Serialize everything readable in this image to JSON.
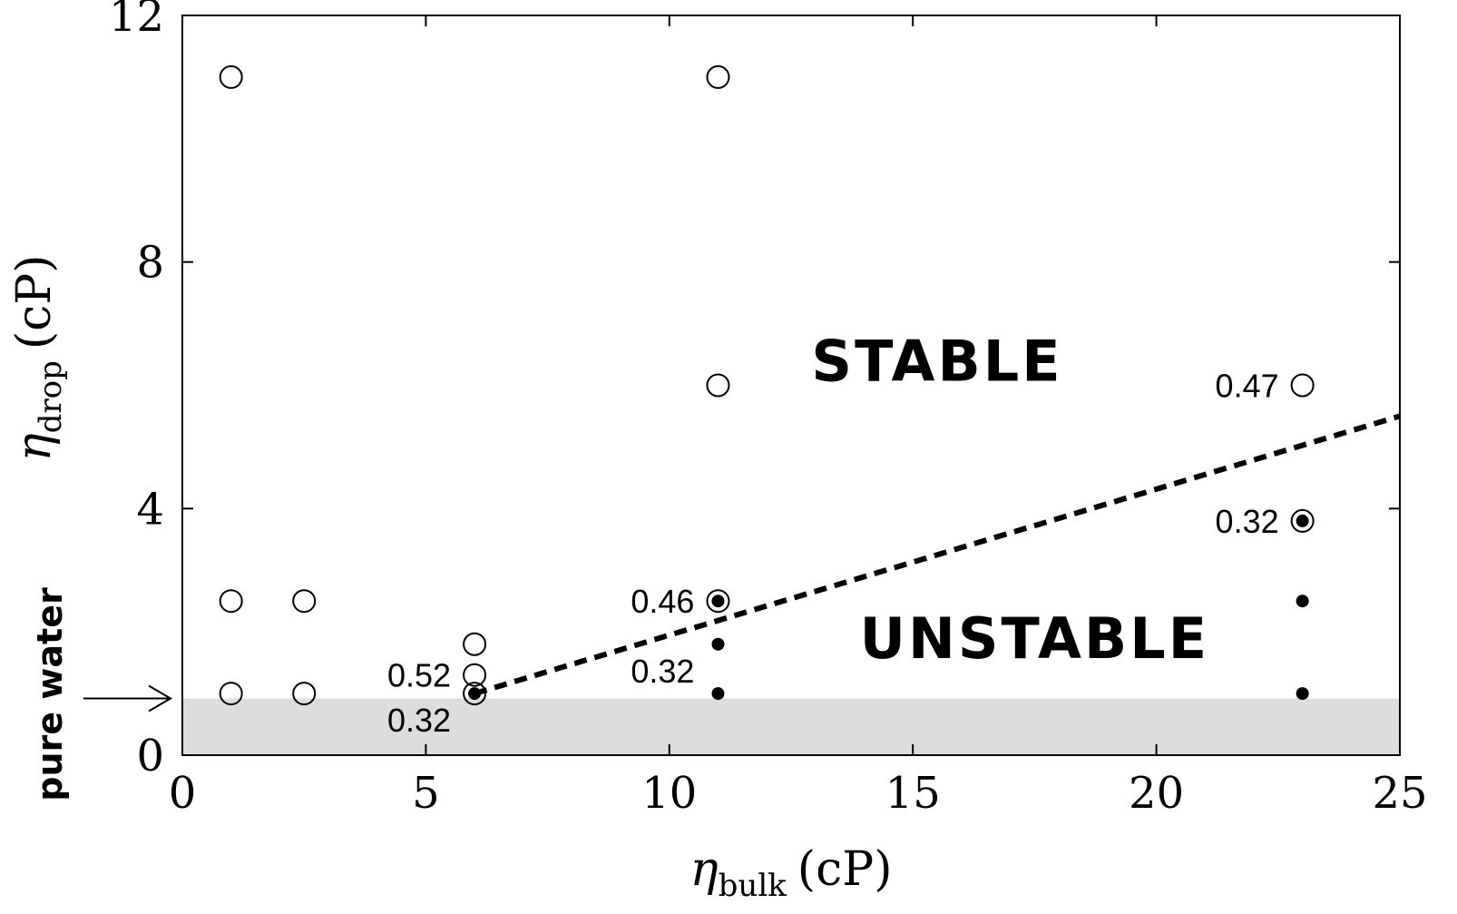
{
  "chart_data": {
    "type": "scatter",
    "title": "",
    "xlabel": {
      "symbol": "η",
      "subscript": "bulk",
      "unit": "(cP)"
    },
    "ylabel": {
      "symbol": "η",
      "subscript": "drop",
      "unit": "(cP)"
    },
    "xlim": [
      0,
      25
    ],
    "ylim": [
      0,
      12
    ],
    "xticks": [
      0,
      5,
      10,
      15,
      20,
      25
    ],
    "yticks": [
      0,
      4,
      8,
      12
    ],
    "xtick_labels": [
      "0",
      "5",
      "10",
      "15",
      "20",
      "25"
    ],
    "ytick_labels": [
      "0",
      "4",
      "8",
      "12"
    ],
    "grid": false,
    "series": [
      {
        "marker": "open-circle",
        "points": [
          {
            "x": 1,
            "y": 11
          },
          {
            "x": 1,
            "y": 2.5
          },
          {
            "x": 1,
            "y": 1
          },
          {
            "x": 2.5,
            "y": 2.5
          },
          {
            "x": 2.5,
            "y": 1
          },
          {
            "x": 6,
            "y": 1.8
          },
          {
            "x": 6,
            "y": 1.3
          },
          {
            "x": 6,
            "y": 1
          },
          {
            "x": 11,
            "y": 11
          },
          {
            "x": 11,
            "y": 6
          },
          {
            "x": 11,
            "y": 2.5
          },
          {
            "x": 23,
            "y": 6
          },
          {
            "x": 23,
            "y": 3.8
          }
        ]
      },
      {
        "marker": "filled-dot",
        "points": [
          {
            "x": 6,
            "y": 1
          },
          {
            "x": 11,
            "y": 2.5
          },
          {
            "x": 11,
            "y": 1.8
          },
          {
            "x": 11,
            "y": 1
          },
          {
            "x": 23,
            "y": 3.8
          },
          {
            "x": 23,
            "y": 2.5
          },
          {
            "x": 23,
            "y": 1
          }
        ]
      }
    ],
    "boundary_line": {
      "style": "dashed",
      "x": [
        6,
        25
      ],
      "y": [
        1,
        5.5
      ]
    },
    "shaded_region": {
      "y0": 0,
      "y1": 0.92,
      "color": "#dcdedd"
    },
    "point_labels": [
      {
        "text": "0.52",
        "x": 6,
        "y": 1.3,
        "side": "left"
      },
      {
        "text": "0.32",
        "x": 6,
        "y": 1,
        "side": "below-left"
      },
      {
        "text": "0.46",
        "x": 11,
        "y": 2.5,
        "side": "left"
      },
      {
        "text": "0.32",
        "x": 11,
        "y": 1.8,
        "side": "below-left"
      },
      {
        "text": "0.47",
        "x": 23,
        "y": 6,
        "side": "left"
      },
      {
        "text": "0.32",
        "x": 23,
        "y": 3.8,
        "side": "left"
      }
    ],
    "region_labels": [
      {
        "text": "STABLE",
        "x": 15.5,
        "y": 6.4
      },
      {
        "text": "UNSTABLE",
        "x": 17.5,
        "y": 1.9
      }
    ],
    "annotation": {
      "text": "pure water",
      "points_to_y": 0.92
    }
  }
}
